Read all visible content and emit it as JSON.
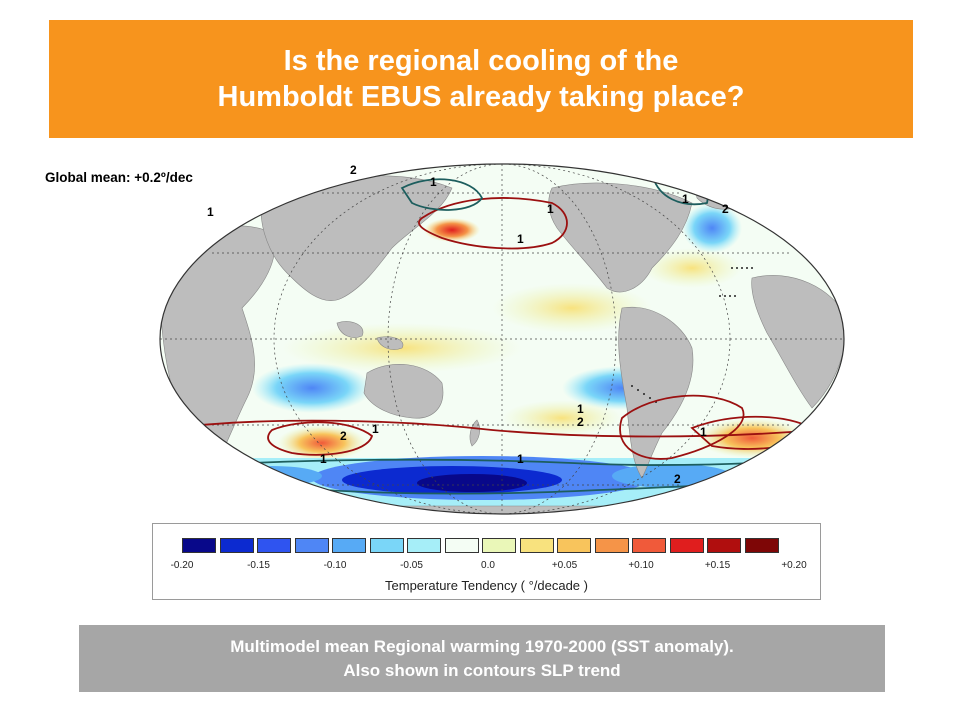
{
  "title": {
    "line1": "Is the regional cooling of the",
    "line2": "Humboldt EBUS already taking place?"
  },
  "global_mean": "Global mean: +0.2º/dec",
  "colorbar": {
    "label": "Temperature Tendency ( °/decade )",
    "ticks": [
      "-0.20",
      "-0.15",
      "-0.10",
      "-0.05",
      "0.0",
      "+0.05",
      "+0.10",
      "+0.15",
      "+0.20"
    ],
    "colors": [
      "#08088a",
      "#0c2ad0",
      "#2f54f0",
      "#4f86f5",
      "#57aaf5",
      "#7ad6f8",
      "#a6eef8",
      "#f4fdf4",
      "#eaf7b8",
      "#f8e27e",
      "#f8c45c",
      "#f59448",
      "#f05a3a",
      "#e01e1e",
      "#b00e0e",
      "#7e0606"
    ]
  },
  "map": {
    "contour_labels": [
      "1",
      "2",
      "1",
      "1",
      "1",
      "1",
      "2",
      "2",
      "1",
      "1",
      "1",
      "2",
      "1",
      "1",
      "2"
    ]
  },
  "caption": {
    "line1": "Multimodel mean Regional warming 1970-2000 (SST anomaly).",
    "line2": "Also shown in contours SLP trend"
  }
}
